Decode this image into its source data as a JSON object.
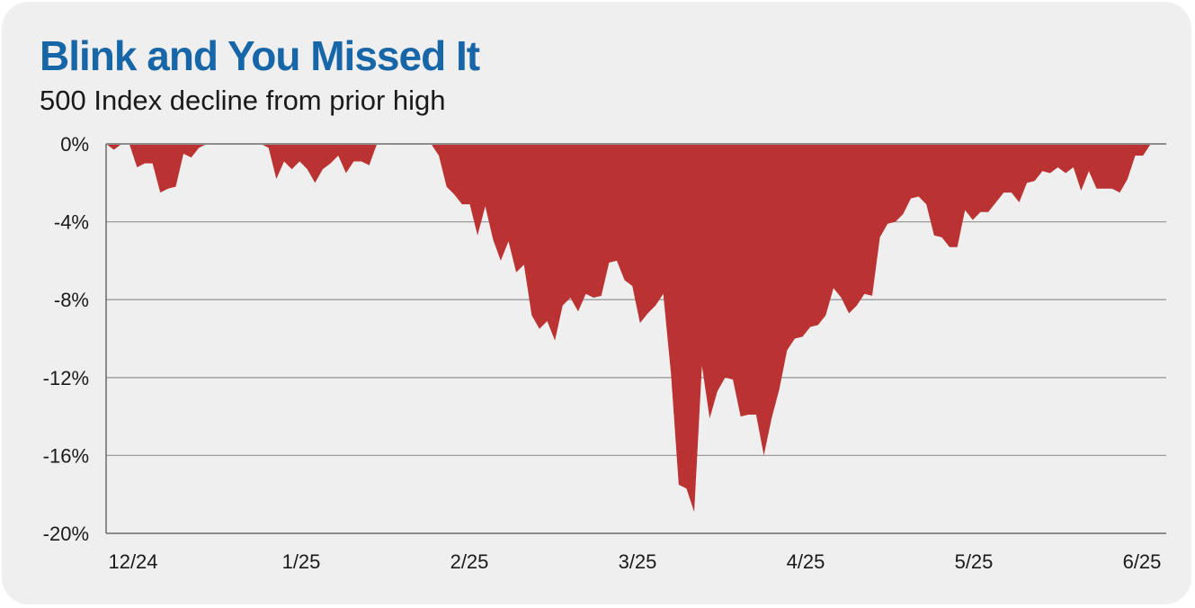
{
  "header": {
    "title": "Blink and You Missed It",
    "subtitle": "500 Index decline from prior high"
  },
  "colors": {
    "title": "#1766a8",
    "area_fill": "#bb3232",
    "gridline": "#9a9a9a",
    "card_background": "#efefef"
  },
  "chart_data": {
    "type": "area",
    "title": "Blink and You Missed It",
    "subtitle": "500 Index decline from prior high",
    "xlabel": "",
    "ylabel": "",
    "ylim": [
      -20,
      0
    ],
    "yticks": [
      0,
      -4,
      -8,
      -12,
      -16,
      -20
    ],
    "ytick_labels": [
      "0%",
      "-4%",
      "-8%",
      "-12%",
      "-16%",
      "-20%"
    ],
    "xtick_labels": [
      "12/24",
      "1/25",
      "2/25",
      "3/25",
      "4/25",
      "5/25",
      "6/25"
    ],
    "grid": true,
    "legend": "none",
    "series": [
      {
        "values": [
          0,
          -0.3,
          0,
          0,
          -1.2,
          -1.0,
          -1.0,
          -2.5,
          -2.3,
          -2.2,
          -0.5,
          -0.7,
          -0.2,
          0,
          0,
          0,
          0,
          0,
          0,
          0,
          0,
          -0.2,
          -1.8,
          -0.9,
          -1.3,
          -0.9,
          -1.3,
          -2.0,
          -1.3,
          -1.0,
          -0.6,
          -1.5,
          -0.9,
          -0.9,
          -1.1,
          0,
          0,
          0,
          0,
          0,
          0,
          0,
          0,
          -0.6,
          -2.2,
          -2.6,
          -3.1,
          -3.1,
          -4.7,
          -3.2,
          -4.9,
          -6.0,
          -5.0,
          -6.6,
          -6.2,
          -8.8,
          -9.5,
          -9.1,
          -10.1,
          -8.3,
          -7.9,
          -8.6,
          -7.7,
          -7.9,
          -7.8,
          -6.1,
          -6.0,
          -7.0,
          -7.3,
          -9.2,
          -8.7,
          -8.3,
          -7.7,
          -11.8,
          -17.5,
          -17.7,
          -18.9,
          -11.4,
          -14.1,
          -12.7,
          -12.0,
          -12.1,
          -14.0,
          -13.9,
          -13.9,
          -16.0,
          -14.1,
          -12.6,
          -10.6,
          -10.0,
          -9.9,
          -9.4,
          -9.3,
          -8.8,
          -7.4,
          -7.9,
          -8.7,
          -8.3,
          -7.7,
          -7.8,
          -4.8,
          -4.1,
          -4.0,
          -3.6,
          -2.8,
          -2.7,
          -3.1,
          -4.7,
          -4.8,
          -5.3,
          -5.3,
          -3.4,
          -3.9,
          -3.5,
          -3.5,
          -3.0,
          -2.5,
          -2.5,
          -3.0,
          -2.0,
          -1.9,
          -1.4,
          -1.5,
          -1.2,
          -1.5,
          -1.2,
          -2.4,
          -1.4,
          -2.3,
          -2.3,
          -2.3,
          -2.5,
          -1.8,
          -0.6,
          -0.6,
          0,
          0,
          0
        ]
      }
    ]
  }
}
